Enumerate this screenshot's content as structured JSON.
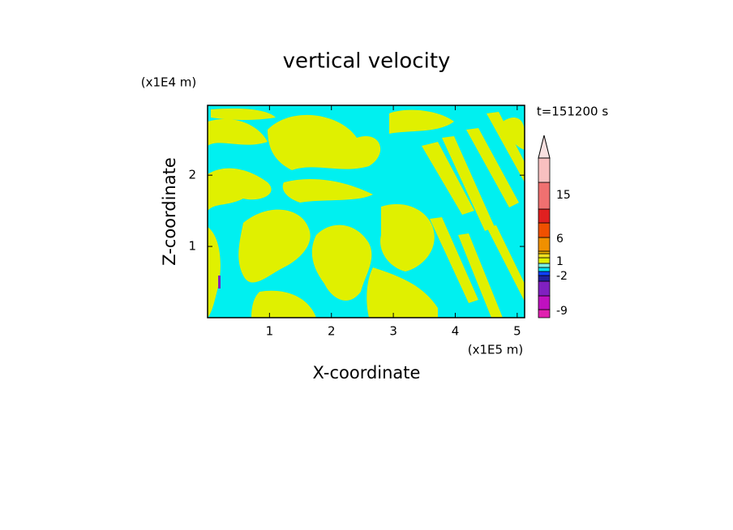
{
  "chart_data": {
    "type": "contour",
    "title": "vertical velocity",
    "xlabel": "X-coordinate",
    "ylabel": "Z-coordinate",
    "x_unit": "(x1E5 m)",
    "y_unit": "(x1E4 m)",
    "time_label": "t=151200 s",
    "xlim": [
      0,
      5.12
    ],
    "xticks": [
      1,
      2,
      3,
      4,
      5
    ],
    "ylim": [
      0,
      2.98
    ],
    "yticks": [
      1,
      2
    ],
    "colorbar": {
      "colors": [
        "#e020b0",
        "#c010c0",
        "#8020c0",
        "#2020a0",
        "#1040ff",
        "#00e0f0",
        "#80f0e0",
        "#e0f000",
        "#f0e020",
        "#f0b000",
        "#f09000",
        "#f05000",
        "#e02020",
        "#f07070",
        "#f8c0c0"
      ],
      "extend_color": "#f8e0e0",
      "ticks": [
        -9,
        -2,
        1,
        6,
        15
      ]
    }
  }
}
